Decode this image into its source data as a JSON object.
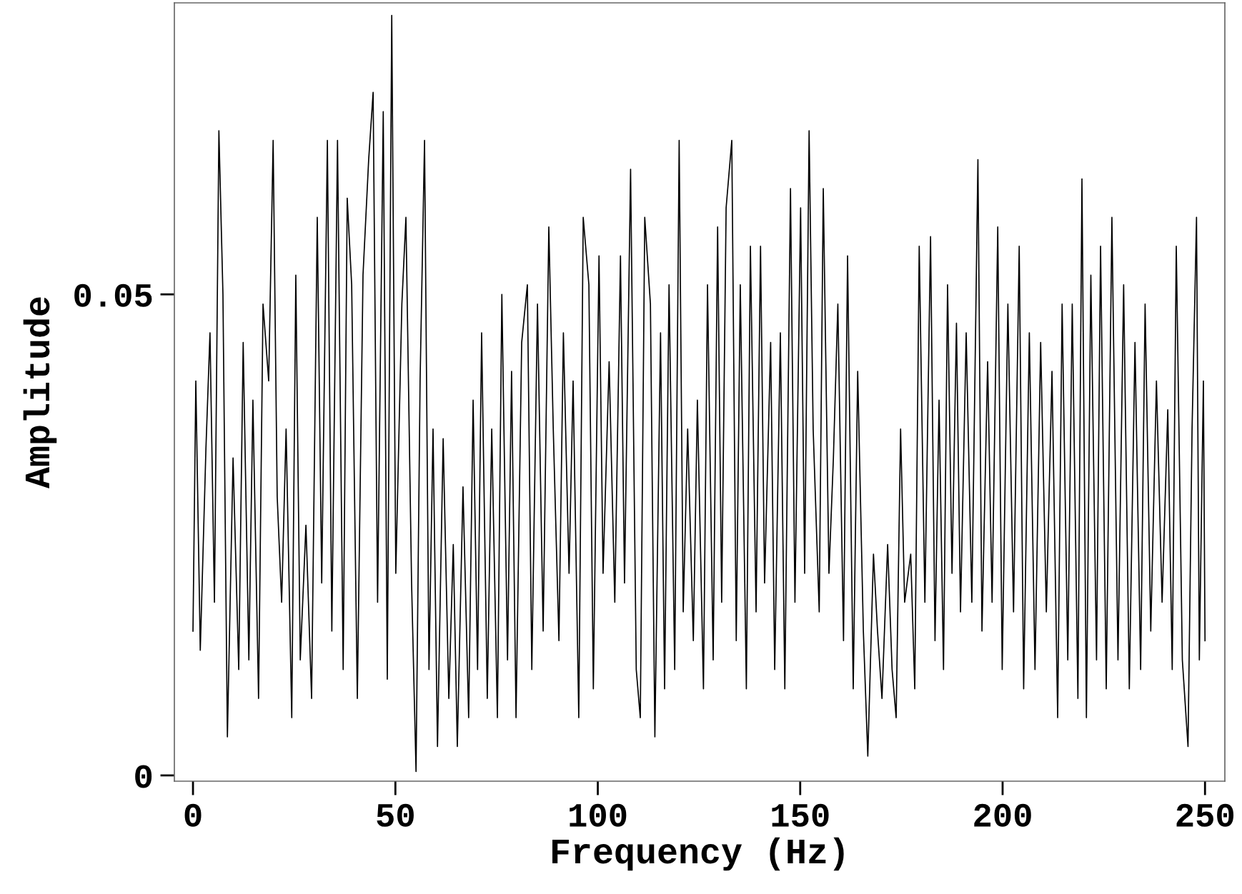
{
  "chart_data": {
    "type": "line",
    "xlabel": "Frequency (Hz)",
    "ylabel": "Amplitude",
    "xlim": [
      -4.6,
      254.9
    ],
    "ylim": [
      -0.0006,
      0.0803
    ],
    "xticks": [
      0,
      50,
      100,
      150,
      200,
      250
    ],
    "yticks": [
      0,
      0.05
    ],
    "grid": false,
    "marker": "none",
    "line_style": "solid",
    "series": [
      {
        "color": "#000000",
        "x": [
          0,
          0.7,
          1.8,
          3.2,
          4.2,
          5.3,
          6.4,
          7.4,
          8.5,
          9.9,
          11.3,
          12.4,
          13.8,
          14.8,
          16.2,
          17.3,
          18.7,
          19.8,
          20.8,
          21.9,
          23.0,
          24.4,
          25.4,
          26.5,
          27.9,
          29.3,
          30.7,
          31.8,
          33.2,
          34.3,
          35.7,
          37.1,
          38.1,
          39.2,
          40.6,
          42.0,
          43.4,
          44.5,
          45.6,
          47.0,
          48.0,
          49.1,
          50.1,
          51.6,
          52.6,
          54.0,
          55.1,
          56.1,
          57.2,
          58.3,
          59.3,
          60.4,
          61.8,
          63.2,
          64.3,
          65.3,
          66.7,
          68.1,
          69.2,
          70.3,
          71.3,
          72.7,
          73.8,
          75.2,
          76.3,
          77.7,
          78.7,
          79.8,
          81.2,
          82.6,
          83.7,
          85.1,
          86.5,
          87.9,
          89.0,
          90.4,
          91.5,
          92.9,
          93.9,
          95.3,
          96.4,
          97.8,
          98.9,
          100.3,
          101.3,
          102.8,
          104.2,
          105.6,
          106.6,
          108.1,
          109.5,
          110.5,
          111.6,
          113.0,
          114.1,
          115.5,
          116.5,
          117.6,
          119.0,
          120.1,
          121.1,
          122.2,
          123.6,
          124.6,
          126.1,
          127.1,
          128.5,
          129.6,
          130.6,
          131.7,
          133.1,
          134.2,
          135.2,
          136.7,
          137.7,
          139.1,
          140.2,
          141.2,
          142.7,
          143.7,
          145.1,
          146.2,
          147.6,
          148.7,
          150.1,
          151.1,
          152.2,
          153.2,
          154.7,
          155.7,
          157.1,
          158.2,
          159.3,
          160.7,
          161.7,
          163.1,
          164.2,
          165.6,
          166.7,
          168.1,
          169.1,
          170.2,
          171.6,
          172.7,
          173.7,
          174.8,
          175.8,
          177.3,
          178.3,
          179.4,
          180.8,
          182.2,
          183.3,
          184.3,
          185.4,
          186.4,
          187.5,
          188.6,
          189.6,
          191.0,
          192.4,
          193.9,
          194.9,
          196.3,
          197.4,
          198.8,
          199.9,
          201.3,
          202.7,
          204.1,
          205.2,
          206.6,
          208.0,
          209.4,
          210.8,
          212.2,
          213.6,
          214.7,
          216.1,
          217.2,
          218.6,
          219.6,
          220.7,
          221.8,
          223.2,
          224.2,
          225.6,
          227.0,
          228.5,
          229.9,
          231.3,
          232.7,
          234.1,
          235.2,
          236.6,
          238.0,
          239.4,
          240.8,
          241.9,
          242.9,
          244.4,
          245.8,
          246.8,
          247.9,
          248.6,
          249.6,
          250.0
        ],
        "values": [
          0.015,
          0.041,
          0.013,
          0.034,
          0.046,
          0.018,
          0.067,
          0.05,
          0.004,
          0.033,
          0.011,
          0.045,
          0.012,
          0.039,
          0.008,
          0.049,
          0.041,
          0.066,
          0.029,
          0.018,
          0.036,
          0.006,
          0.052,
          0.012,
          0.026,
          0.008,
          0.058,
          0.02,
          0.066,
          0.015,
          0.066,
          0.011,
          0.06,
          0.051,
          0.008,
          0.052,
          0.064,
          0.071,
          0.018,
          0.069,
          0.01,
          0.079,
          0.021,
          0.049,
          0.058,
          0.02,
          0.0004,
          0.041,
          0.066,
          0.011,
          0.036,
          0.003,
          0.035,
          0.008,
          0.024,
          0.003,
          0.03,
          0.006,
          0.039,
          0.011,
          0.046,
          0.008,
          0.036,
          0.006,
          0.05,
          0.012,
          0.042,
          0.006,
          0.045,
          0.051,
          0.011,
          0.049,
          0.015,
          0.057,
          0.036,
          0.014,
          0.046,
          0.021,
          0.041,
          0.006,
          0.058,
          0.051,
          0.009,
          0.054,
          0.021,
          0.043,
          0.018,
          0.054,
          0.02,
          0.063,
          0.011,
          0.006,
          0.058,
          0.049,
          0.004,
          0.046,
          0.009,
          0.051,
          0.011,
          0.066,
          0.017,
          0.036,
          0.014,
          0.039,
          0.009,
          0.051,
          0.012,
          0.057,
          0.018,
          0.059,
          0.066,
          0.014,
          0.051,
          0.009,
          0.055,
          0.017,
          0.055,
          0.02,
          0.045,
          0.011,
          0.046,
          0.009,
          0.061,
          0.018,
          0.059,
          0.021,
          0.067,
          0.036,
          0.017,
          0.061,
          0.021,
          0.033,
          0.049,
          0.014,
          0.054,
          0.009,
          0.042,
          0.015,
          0.002,
          0.023,
          0.015,
          0.008,
          0.024,
          0.011,
          0.006,
          0.036,
          0.018,
          0.023,
          0.009,
          0.055,
          0.018,
          0.056,
          0.014,
          0.039,
          0.011,
          0.051,
          0.021,
          0.047,
          0.017,
          0.046,
          0.018,
          0.064,
          0.015,
          0.043,
          0.018,
          0.057,
          0.011,
          0.049,
          0.017,
          0.055,
          0.009,
          0.046,
          0.011,
          0.045,
          0.017,
          0.042,
          0.006,
          0.049,
          0.012,
          0.049,
          0.008,
          0.062,
          0.006,
          0.052,
          0.012,
          0.055,
          0.009,
          0.058,
          0.012,
          0.051,
          0.009,
          0.045,
          0.011,
          0.049,
          0.015,
          0.041,
          0.018,
          0.038,
          0.011,
          0.055,
          0.012,
          0.003,
          0.036,
          0.058,
          0.012,
          0.041,
          0.014
        ]
      }
    ]
  }
}
